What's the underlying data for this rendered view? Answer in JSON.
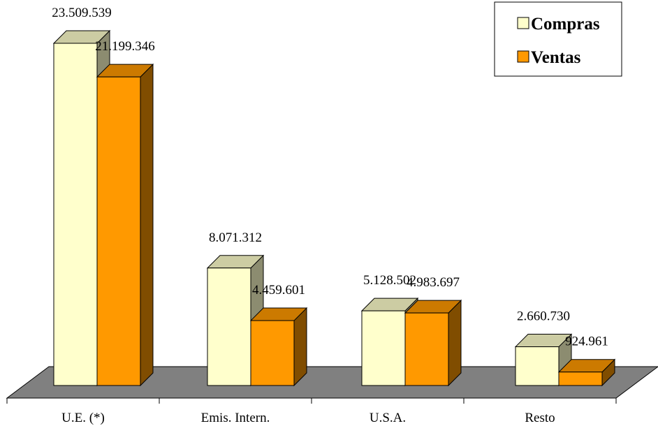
{
  "chart_data": {
    "type": "bar",
    "style": "3d-clustered-column",
    "categories": [
      "U.E. (*)",
      "Emis. Intern.",
      "U.S.A.",
      "Resto"
    ],
    "series": [
      {
        "name": "Compras",
        "color": "#FFFFCC",
        "values": [
          23509539,
          8071312,
          5128502,
          2660730
        ],
        "labels": [
          "23.509.539",
          "8.071.312",
          "5.128.502",
          "2.660.730"
        ]
      },
      {
        "name": "Ventas",
        "color": "#FF9900",
        "values": [
          21199346,
          4459601,
          4983697,
          924961
        ],
        "labels": [
          "21.199.346",
          "4.459.601",
          "4.983.697",
          "924.961"
        ]
      }
    ],
    "ylim": [
      0,
      23509539
    ],
    "floor_color": "#808080",
    "legend_position": "top-right",
    "title": "",
    "xlabel": "",
    "ylabel": ""
  }
}
